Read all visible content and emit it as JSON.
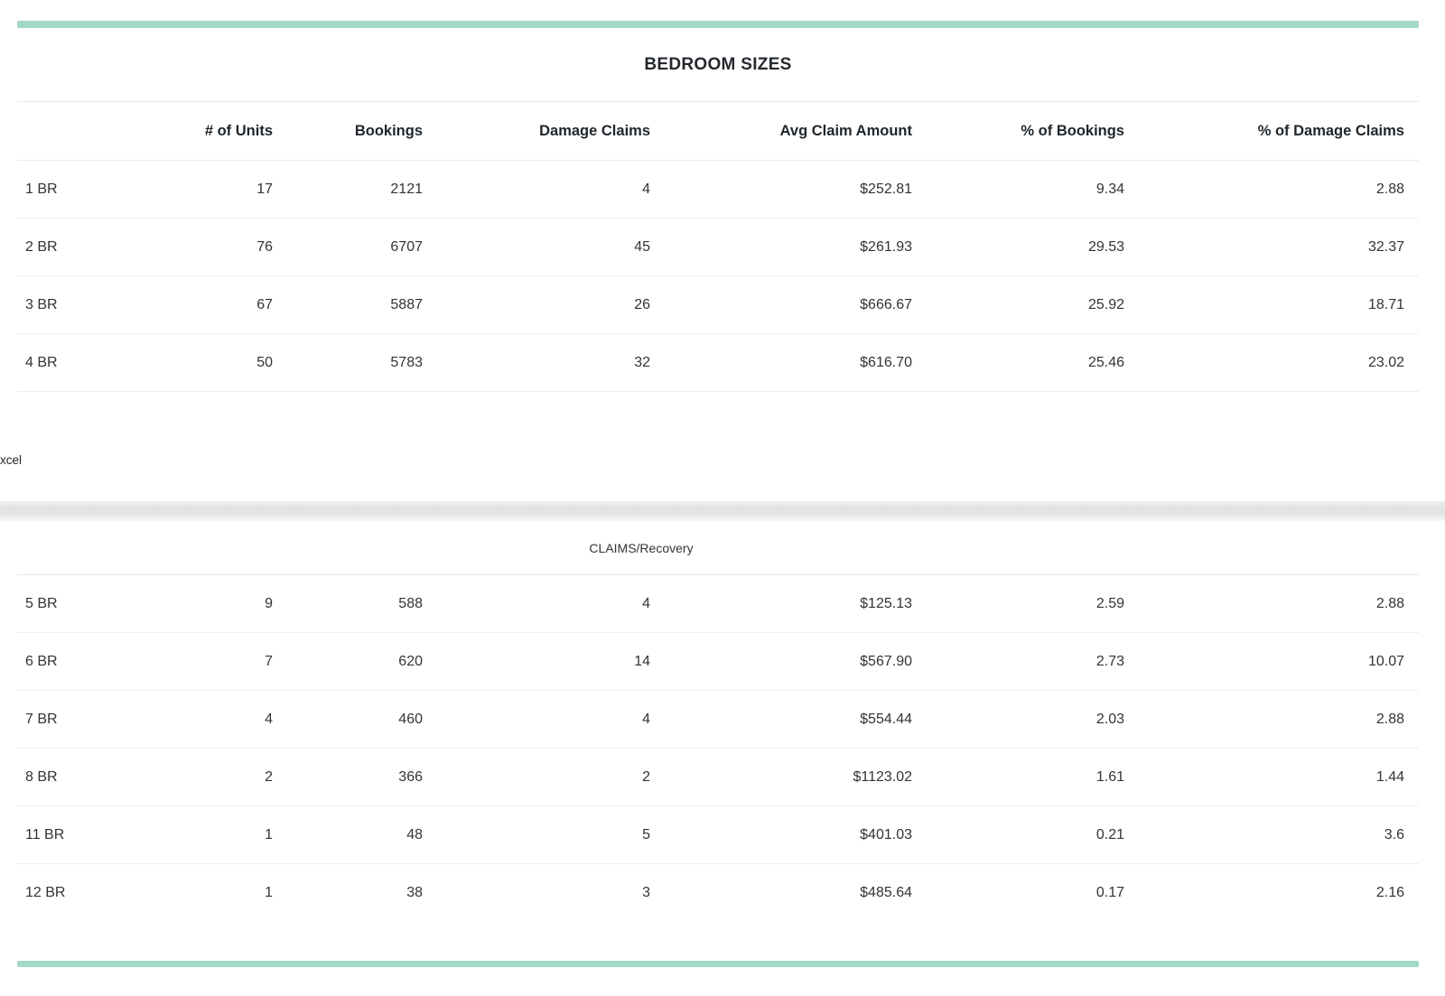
{
  "accent_colors": {
    "teal_bar": "#a3d8c6",
    "divider_band_gray": "#e2e2e2",
    "row_divider": "#ededed"
  },
  "top_panel": {
    "title": "BEDROOM SIZES",
    "columns": [
      "# of Units",
      "Bookings",
      "Damage Claims",
      "Avg Claim Amount",
      "% of Bookings",
      "% of Damage Claims"
    ],
    "rows": [
      [
        "1 BR",
        "17",
        "2121",
        "4",
        "$252.81",
        "9.34",
        "2.88"
      ],
      [
        "2 BR",
        "76",
        "6707",
        "45",
        "$261.93",
        "29.53",
        "32.37"
      ],
      [
        "3 BR",
        "67",
        "5887",
        "26",
        "$666.67",
        "25.92",
        "18.71"
      ],
      [
        "4 BR",
        "50",
        "5783",
        "32",
        "$616.70",
        "25.46",
        "23.02"
      ]
    ]
  },
  "export_link": {
    "label": "xcel"
  },
  "bottom_panel": {
    "title": "CLAIMS/Recovery",
    "rows": [
      [
        "5 BR",
        "9",
        "588",
        "4",
        "$125.13",
        "2.59",
        "2.88"
      ],
      [
        "6 BR",
        "7",
        "620",
        "14",
        "$567.90",
        "2.73",
        "10.07"
      ],
      [
        "7 BR",
        "4",
        "460",
        "4",
        "$554.44",
        "2.03",
        "2.88"
      ],
      [
        "8 BR",
        "2",
        "366",
        "2",
        "$1123.02",
        "1.61",
        "1.44"
      ],
      [
        "11 BR",
        "1",
        "48",
        "5",
        "$401.03",
        "0.21",
        "3.6"
      ],
      [
        "12 BR",
        "1",
        "38",
        "3",
        "$485.64",
        "0.17",
        "2.16"
      ]
    ]
  }
}
